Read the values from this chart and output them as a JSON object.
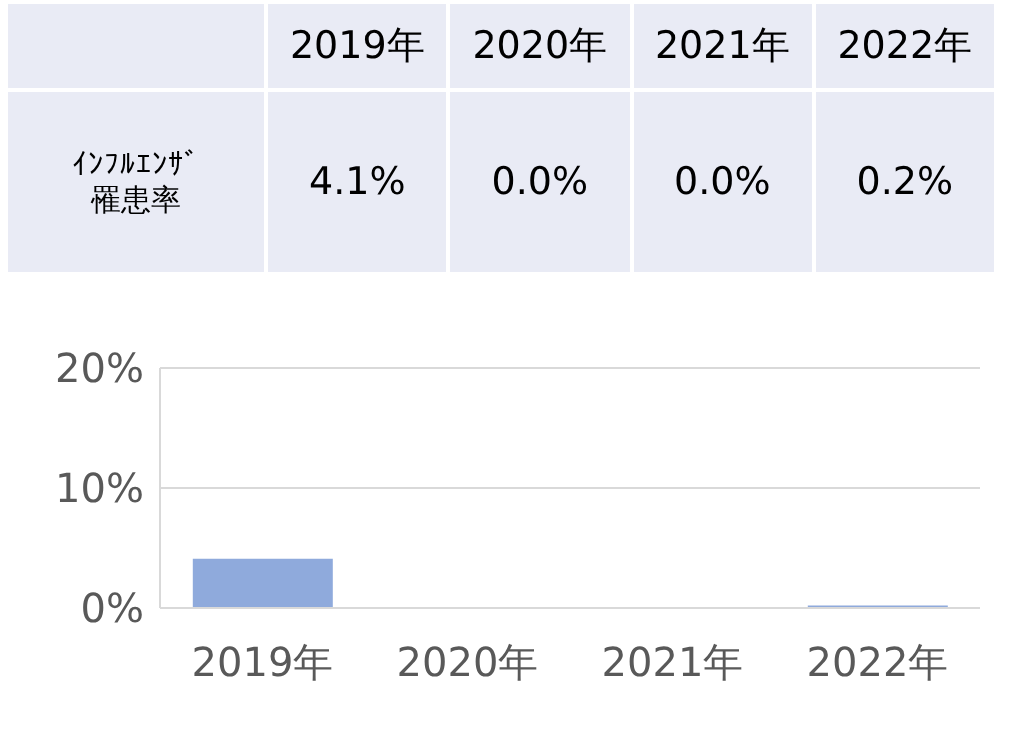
{
  "chart_data": {
    "type": "bar",
    "categories": [
      "2019年",
      "2020年",
      "2021年",
      "2022年"
    ],
    "series": [
      {
        "name": "ｲﾝﾌﾙｴﾝｻﾞ罹患率",
        "color": "#8faadc",
        "values": [
          4.1,
          0.0,
          0.0,
          0.2
        ],
        "value_labels": [
          "4.1%",
          "0.0%",
          "0.0%",
          "0.2%"
        ]
      }
    ],
    "ylim": [
      0,
      20
    ],
    "yticks": [
      {
        "value": 0,
        "label": "0%"
      },
      {
        "value": 10,
        "label": "10%"
      },
      {
        "value": 20,
        "label": "20%"
      }
    ],
    "grid": "y"
  }
}
